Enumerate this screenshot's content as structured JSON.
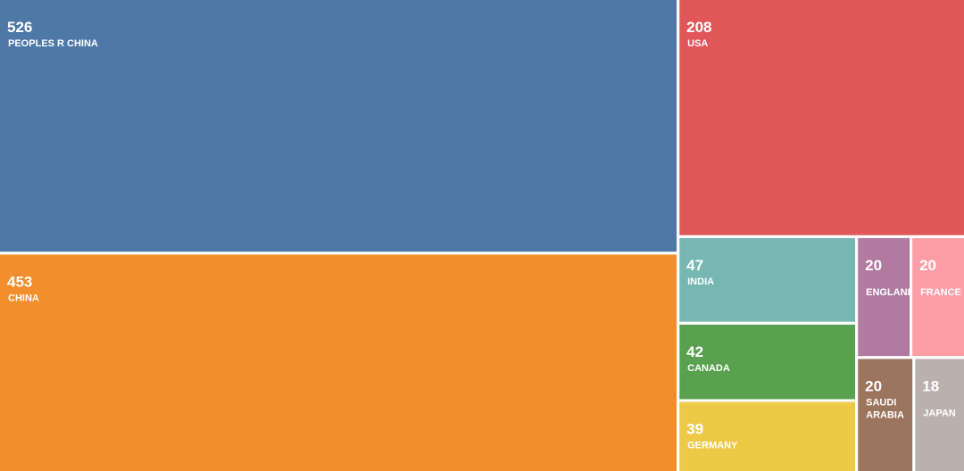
{
  "chart_data": {
    "type": "treemap",
    "categories": [
      "PEOPLES R CHINA",
      "CHINA",
      "USA",
      "INDIA",
      "CANADA",
      "GERMANY",
      "ENGLAND",
      "FRANCE",
      "SAUDI ARABIA",
      "JAPAN"
    ],
    "values": [
      526,
      453,
      208,
      47,
      42,
      39,
      20,
      20,
      20,
      18
    ],
    "colors": [
      "#4e79a7",
      "#f28e2b",
      "#e15759",
      "#76b7b2",
      "#59a14f",
      "#edc948",
      "#b07aa1",
      "#ff9da7",
      "#9c755f",
      "#bab0ac"
    ]
  }
}
